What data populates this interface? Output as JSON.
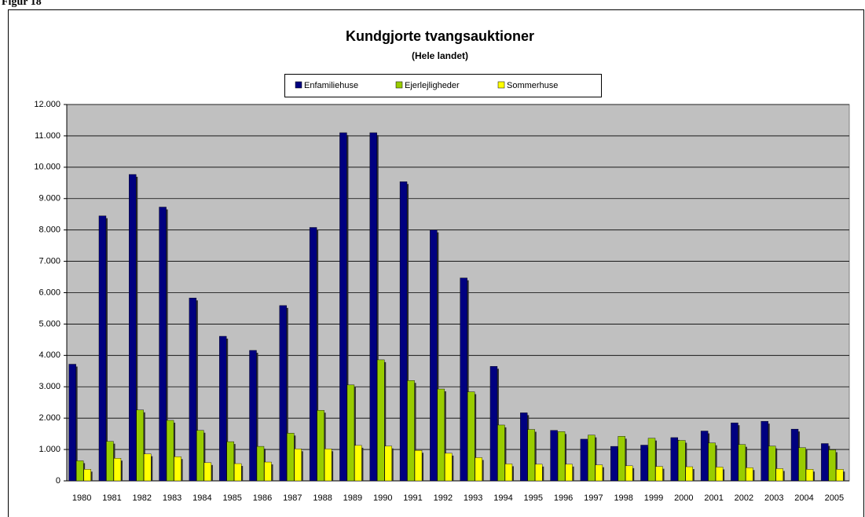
{
  "figure_label": "Figur 18",
  "chart_data": {
    "type": "bar",
    "title": "Kundgjorte tvangsauktioner",
    "subtitle": "(Hele landet)",
    "categories": [
      "1980",
      "1981",
      "1982",
      "1983",
      "1984",
      "1985",
      "1986",
      "1987",
      "1988",
      "1989",
      "1990",
      "1991",
      "1992",
      "1993",
      "1994",
      "1995",
      "1996",
      "1997",
      "1998",
      "1999",
      "2000",
      "2001",
      "2002",
      "2003",
      "2004",
      "2005"
    ],
    "series": [
      {
        "name": "Enfamiliehuse",
        "color": "#000080",
        "values": [
          3720,
          8450,
          9770,
          8730,
          5830,
          4610,
          4160,
          5590,
          8080,
          11100,
          11100,
          9540,
          8000,
          6470,
          3650,
          2170,
          1610,
          1330,
          1100,
          1140,
          1380,
          1590,
          1850,
          1900,
          1650,
          1190
        ]
      },
      {
        "name": "Ejerlejligheder",
        "color": "#99cc00",
        "values": [
          640,
          1260,
          2260,
          1930,
          1610,
          1250,
          1100,
          1520,
          2250,
          3060,
          3860,
          3200,
          2930,
          2840,
          1780,
          1640,
          1570,
          1460,
          1420,
          1360,
          1290,
          1210,
          1160,
          1110,
          1060,
          990
        ]
      },
      {
        "name": "Sommerhuse",
        "color": "#ffff00",
        "values": [
          370,
          720,
          860,
          770,
          580,
          550,
          600,
          1020,
          1020,
          1130,
          1110,
          970,
          880,
          740,
          540,
          530,
          530,
          510,
          480,
          460,
          450,
          440,
          420,
          390,
          370,
          370
        ]
      }
    ],
    "ylim": [
      0,
      12000
    ],
    "yticks": [
      0,
      {
        "value": 1000,
        "label": "1.000"
      },
      {
        "value": 2000,
        "label": "2.000"
      },
      {
        "value": 3000,
        "label": "3.000"
      },
      {
        "value": 4000,
        "label": "4.000"
      },
      {
        "value": 5000,
        "label": "5.000"
      },
      {
        "value": 6000,
        "label": "6.000"
      },
      {
        "value": 7000,
        "label": "7.000"
      },
      {
        "value": 8000,
        "label": "8.000"
      },
      {
        "value": 9000,
        "label": "9.000"
      },
      {
        "value": 10000,
        "label": "10.000"
      },
      {
        "value": 11000,
        "label": "11.000"
      },
      {
        "value": 12000,
        "label": "12.000"
      }
    ],
    "grid": true,
    "legend": "top",
    "plot_background": "#c0c0c0"
  }
}
